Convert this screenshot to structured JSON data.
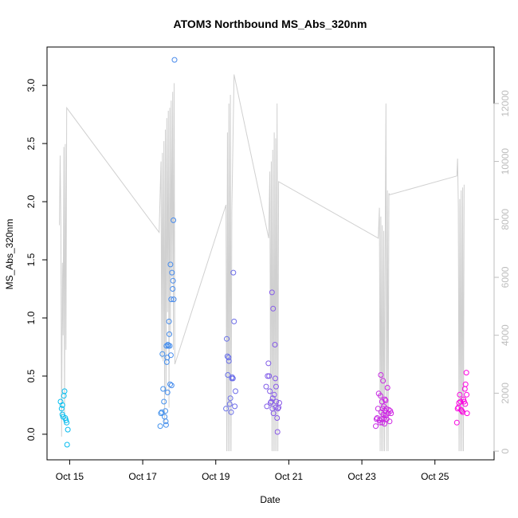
{
  "chart_data": {
    "type": "scatter",
    "title": "ATOM3 Northbound MS_Abs_320nm",
    "xlabel": "Date",
    "ylabel": "MS_Abs_320nm",
    "x_ticks": [
      "Oct 15",
      "Oct 17",
      "Oct 19",
      "Oct 21",
      "Oct 23",
      "Oct 25"
    ],
    "y_ticks": [
      "0.0",
      "0.5",
      "1.0",
      "1.5",
      "2.0",
      "2.5",
      "3.0"
    ],
    "y2_ticks": [
      "0",
      "2000",
      "4000",
      "6000",
      "8000",
      "10000",
      "12000"
    ],
    "xlim": [
      14.38,
      26.62
    ],
    "ylim": [
      -0.22,
      3.33
    ],
    "y2lim": [
      -300,
      13950
    ],
    "grid": false,
    "series": [
      {
        "axis": "left",
        "color_start": "#00c0f0",
        "color_end": "#ff00e0",
        "points": [
          [
            14.75,
            0.28
          ],
          [
            14.78,
            0.22
          ],
          [
            14.8,
            0.17
          ],
          [
            14.82,
            0.15
          ],
          [
            14.84,
            0.33
          ],
          [
            14.86,
            0.37
          ],
          [
            14.88,
            0.14
          ],
          [
            14.9,
            0.12
          ],
          [
            14.92,
            0.1
          ],
          [
            14.95,
            0.04
          ],
          [
            14.93,
            -0.09
          ],
          [
            14.8,
            0.25
          ],
          [
            17.48,
            0.07
          ],
          [
            17.5,
            0.18
          ],
          [
            17.52,
            0.19
          ],
          [
            17.54,
            0.69
          ],
          [
            17.56,
            0.39
          ],
          [
            17.58,
            0.28
          ],
          [
            17.6,
            0.15
          ],
          [
            17.62,
            0.2
          ],
          [
            17.63,
            0.11
          ],
          [
            17.64,
            0.08
          ],
          [
            17.65,
            0.76
          ],
          [
            17.66,
            0.62
          ],
          [
            17.67,
            0.66
          ],
          [
            17.68,
            0.36
          ],
          [
            17.69,
            0.77
          ],
          [
            17.7,
            0.76
          ],
          [
            17.72,
            0.97
          ],
          [
            17.73,
            0.86
          ],
          [
            17.74,
            0.76
          ],
          [
            17.75,
            0.43
          ],
          [
            17.76,
            1.46
          ],
          [
            17.77,
            0.68
          ],
          [
            17.78,
            1.16
          ],
          [
            17.79,
            0.42
          ],
          [
            17.8,
            1.39
          ],
          [
            17.82,
            1.25
          ],
          [
            17.83,
            1.32
          ],
          [
            17.85,
            1.16
          ],
          [
            17.84,
            1.84
          ],
          [
            17.87,
            3.22
          ],
          [
            19.28,
            0.22
          ],
          [
            19.3,
            0.82
          ],
          [
            19.32,
            0.67
          ],
          [
            19.33,
            0.51
          ],
          [
            19.35,
            0.66
          ],
          [
            19.36,
            0.63
          ],
          [
            19.38,
            0.26
          ],
          [
            19.4,
            0.31
          ],
          [
            19.42,
            0.19
          ],
          [
            19.44,
            0.48
          ],
          [
            19.45,
            0.49
          ],
          [
            19.47,
            0.48
          ],
          [
            19.48,
            1.39
          ],
          [
            19.5,
            0.97
          ],
          [
            19.52,
            0.24
          ],
          [
            19.54,
            0.37
          ],
          [
            20.38,
            0.41
          ],
          [
            20.4,
            0.24
          ],
          [
            20.42,
            0.5
          ],
          [
            20.44,
            0.61
          ],
          [
            20.46,
            0.5
          ],
          [
            20.48,
            0.37
          ],
          [
            20.5,
            0.27
          ],
          [
            20.52,
            0.28
          ],
          [
            20.54,
            1.22
          ],
          [
            20.55,
            0.22
          ],
          [
            20.56,
            0.31
          ],
          [
            20.57,
            1.08
          ],
          [
            20.58,
            0.18
          ],
          [
            20.6,
            0.34
          ],
          [
            20.62,
            0.77
          ],
          [
            20.63,
            0.48
          ],
          [
            20.64,
            0.23
          ],
          [
            20.65,
            0.41
          ],
          [
            20.66,
            0.28
          ],
          [
            20.68,
            0.14
          ],
          [
            20.69,
            0.02
          ],
          [
            20.7,
            0.22
          ],
          [
            20.72,
            0.23
          ],
          [
            20.74,
            0.27
          ],
          [
            23.38,
            0.07
          ],
          [
            23.4,
            0.13
          ],
          [
            23.42,
            0.14
          ],
          [
            23.44,
            0.22
          ],
          [
            23.46,
            0.35
          ],
          [
            23.48,
            0.12
          ],
          [
            23.5,
            0.1
          ],
          [
            23.51,
            0.33
          ],
          [
            23.52,
            0.51
          ],
          [
            23.53,
            0.19
          ],
          [
            23.54,
            0.13
          ],
          [
            23.55,
            0.28
          ],
          [
            23.56,
            0.1
          ],
          [
            23.57,
            0.22
          ],
          [
            23.58,
            0.46
          ],
          [
            23.59,
            0.17
          ],
          [
            23.6,
            0.24
          ],
          [
            23.61,
            0.14
          ],
          [
            23.62,
            0.09
          ],
          [
            23.63,
            0.3
          ],
          [
            23.64,
            0.2
          ],
          [
            23.65,
            0.29
          ],
          [
            23.66,
            0.16
          ],
          [
            23.67,
            0.22
          ],
          [
            23.68,
            0.13
          ],
          [
            23.7,
            0.4
          ],
          [
            23.72,
            0.18
          ],
          [
            23.74,
            0.21
          ],
          [
            23.76,
            0.11
          ],
          [
            23.78,
            0.2
          ],
          [
            23.8,
            0.18
          ],
          [
            25.6,
            0.1
          ],
          [
            25.62,
            0.22
          ],
          [
            25.64,
            0.23
          ],
          [
            25.66,
            0.27
          ],
          [
            25.68,
            0.34
          ],
          [
            25.7,
            0.28
          ],
          [
            25.72,
            0.21
          ],
          [
            25.74,
            0.2
          ],
          [
            25.76,
            0.19
          ],
          [
            25.78,
            0.3
          ],
          [
            25.8,
            0.28
          ],
          [
            25.82,
            0.39
          ],
          [
            25.84,
            0.43
          ],
          [
            25.86,
            0.53
          ],
          [
            25.88,
            0.18
          ],
          [
            25.83,
            0.26
          ],
          [
            25.87,
            0.34
          ]
        ]
      },
      {
        "axis": "right",
        "color": "#d0d0d0",
        "points": [
          [
            14.72,
            7800
          ],
          [
            14.74,
            10200
          ],
          [
            14.76,
            7800
          ],
          [
            14.78,
            500
          ],
          [
            14.8,
            6500
          ],
          [
            14.82,
            4000
          ],
          [
            14.84,
            10500
          ],
          [
            14.86,
            900
          ],
          [
            14.88,
            10600
          ],
          [
            14.9,
            3500
          ],
          [
            14.92,
            11850
          ],
          [
            17.45,
            7550
          ],
          [
            17.5,
            10000
          ],
          [
            17.52,
            3200
          ],
          [
            17.54,
            10300
          ],
          [
            17.56,
            3100
          ],
          [
            17.58,
            10700
          ],
          [
            17.6,
            1000
          ],
          [
            17.62,
            11100
          ],
          [
            17.64,
            2000
          ],
          [
            17.66,
            11500
          ],
          [
            17.68,
            4800
          ],
          [
            17.7,
            11750
          ],
          [
            17.72,
            1500
          ],
          [
            17.74,
            11850
          ],
          [
            17.76,
            4000
          ],
          [
            17.78,
            12100
          ],
          [
            17.8,
            6000
          ],
          [
            17.82,
            12400
          ],
          [
            17.84,
            3500
          ],
          [
            17.86,
            12700
          ],
          [
            17.88,
            3000
          ],
          [
            19.28,
            8500
          ],
          [
            19.3,
            0
          ],
          [
            19.32,
            11000
          ],
          [
            19.34,
            0
          ],
          [
            19.36,
            12000
          ],
          [
            19.38,
            0
          ],
          [
            19.4,
            12300
          ],
          [
            19.42,
            0
          ],
          [
            19.44,
            8300
          ],
          [
            19.5,
            13000
          ],
          [
            20.45,
            7350
          ],
          [
            20.48,
            9650
          ],
          [
            20.5,
            1500
          ],
          [
            20.52,
            10000
          ],
          [
            20.54,
            0
          ],
          [
            20.56,
            10400
          ],
          [
            20.58,
            0
          ],
          [
            20.6,
            11000
          ],
          [
            20.62,
            0
          ],
          [
            20.64,
            10800
          ],
          [
            20.66,
            0
          ],
          [
            20.68,
            12000
          ],
          [
            20.7,
            0
          ],
          [
            20.72,
            9300
          ],
          [
            23.45,
            7350
          ],
          [
            23.48,
            8400
          ],
          [
            23.5,
            0
          ],
          [
            23.52,
            8100
          ],
          [
            23.54,
            0
          ],
          [
            23.56,
            7800
          ],
          [
            23.58,
            0
          ],
          [
            23.6,
            7600
          ],
          [
            23.62,
            0
          ],
          [
            23.64,
            7400
          ],
          [
            23.66,
            12000
          ],
          [
            23.68,
            0
          ],
          [
            23.7,
            9000
          ],
          [
            23.72,
            0
          ],
          [
            23.74,
            8900
          ],
          [
            23.76,
            8850
          ],
          [
            25.6,
            9500
          ],
          [
            25.62,
            10100
          ],
          [
            25.64,
            8500
          ],
          [
            25.66,
            0
          ],
          [
            25.68,
            8700
          ],
          [
            25.7,
            0
          ],
          [
            25.72,
            9000
          ],
          [
            25.74,
            0
          ],
          [
            25.76,
            9100
          ],
          [
            25.78,
            0
          ],
          [
            25.8,
            9200
          ]
        ]
      }
    ]
  }
}
